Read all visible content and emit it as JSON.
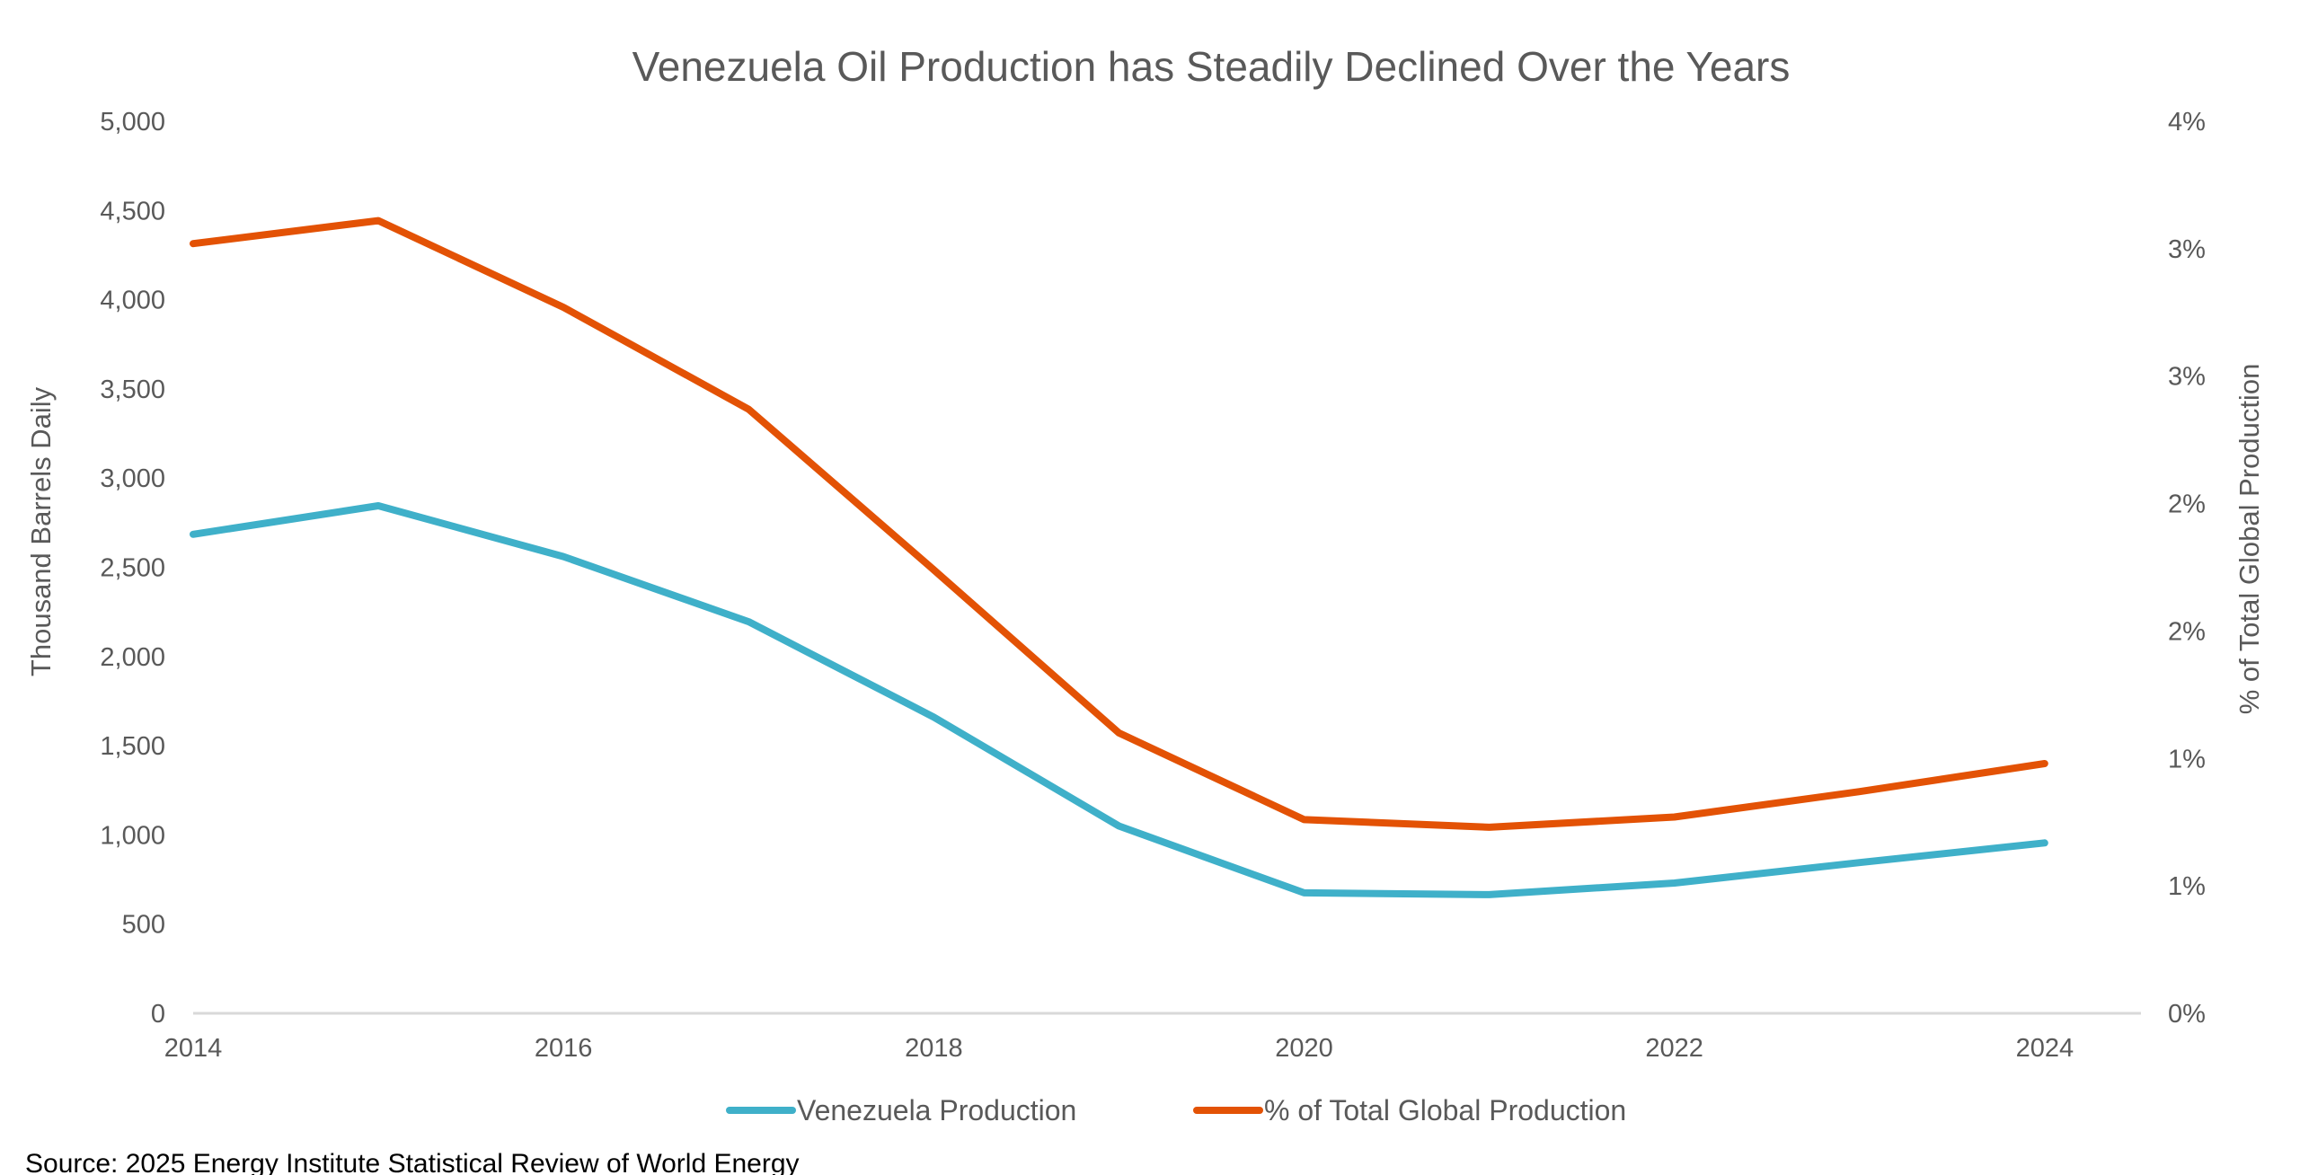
{
  "chart_data": {
    "type": "line",
    "title": "Venezuela Oil Production has Steadily Declined Over the Years",
    "xlabel": "",
    "ylabel": "Thousand Barrels Daily",
    "y2label": "% of Total Global Production",
    "x": [
      2014,
      2015,
      2016,
      2017,
      2018,
      2019,
      2020,
      2021,
      2022,
      2023,
      2024
    ],
    "x_ticks": [
      "2014",
      "2016",
      "2018",
      "2020",
      "2022",
      "2024"
    ],
    "x_tick_values": [
      2014,
      2016,
      2018,
      2020,
      2022,
      2024
    ],
    "xlim": [
      2014,
      2024.52
    ],
    "ylim": [
      0,
      5000
    ],
    "y_ticks": [
      "0",
      "500",
      "1,000",
      "1,500",
      "2,000",
      "2,500",
      "3,000",
      "3,500",
      "4,000",
      "4,500",
      "5,000"
    ],
    "y_tick_values": [
      0,
      500,
      1000,
      1500,
      2000,
      2500,
      3000,
      3500,
      4000,
      4500,
      5000
    ],
    "y2lim": [
      0,
      3.5
    ],
    "y2_ticks": [
      "0%",
      "1%",
      "1%",
      "2%",
      "2%",
      "3%",
      "3%",
      "4%"
    ],
    "y2_tick_values": [
      0,
      0.5,
      1.0,
      1.5,
      2.0,
      2.5,
      3.0,
      3.5
    ],
    "grid": false,
    "legend_position": "bottom",
    "series": [
      {
        "name": "Venezuela Production",
        "axis": "left",
        "color": "#3FB0C9",
        "values": [
          2685,
          2845,
          2560,
          2195,
          1660,
          1050,
          675,
          665,
          730,
          845,
          955
        ]
      },
      {
        "name": "% of Total Global Production",
        "axis": "right",
        "unit": "%",
        "color": "#E35205",
        "values": [
          3.02,
          3.11,
          2.77,
          2.37,
          1.74,
          1.1,
          0.76,
          0.73,
          0.77,
          0.87,
          0.98
        ]
      }
    ],
    "source": "Source: 2025 Energy Institute Statistical Review of World Energy"
  },
  "colors": {
    "text": "#595959",
    "axis_line": "#D9D9D9",
    "source_text": "#000000"
  }
}
